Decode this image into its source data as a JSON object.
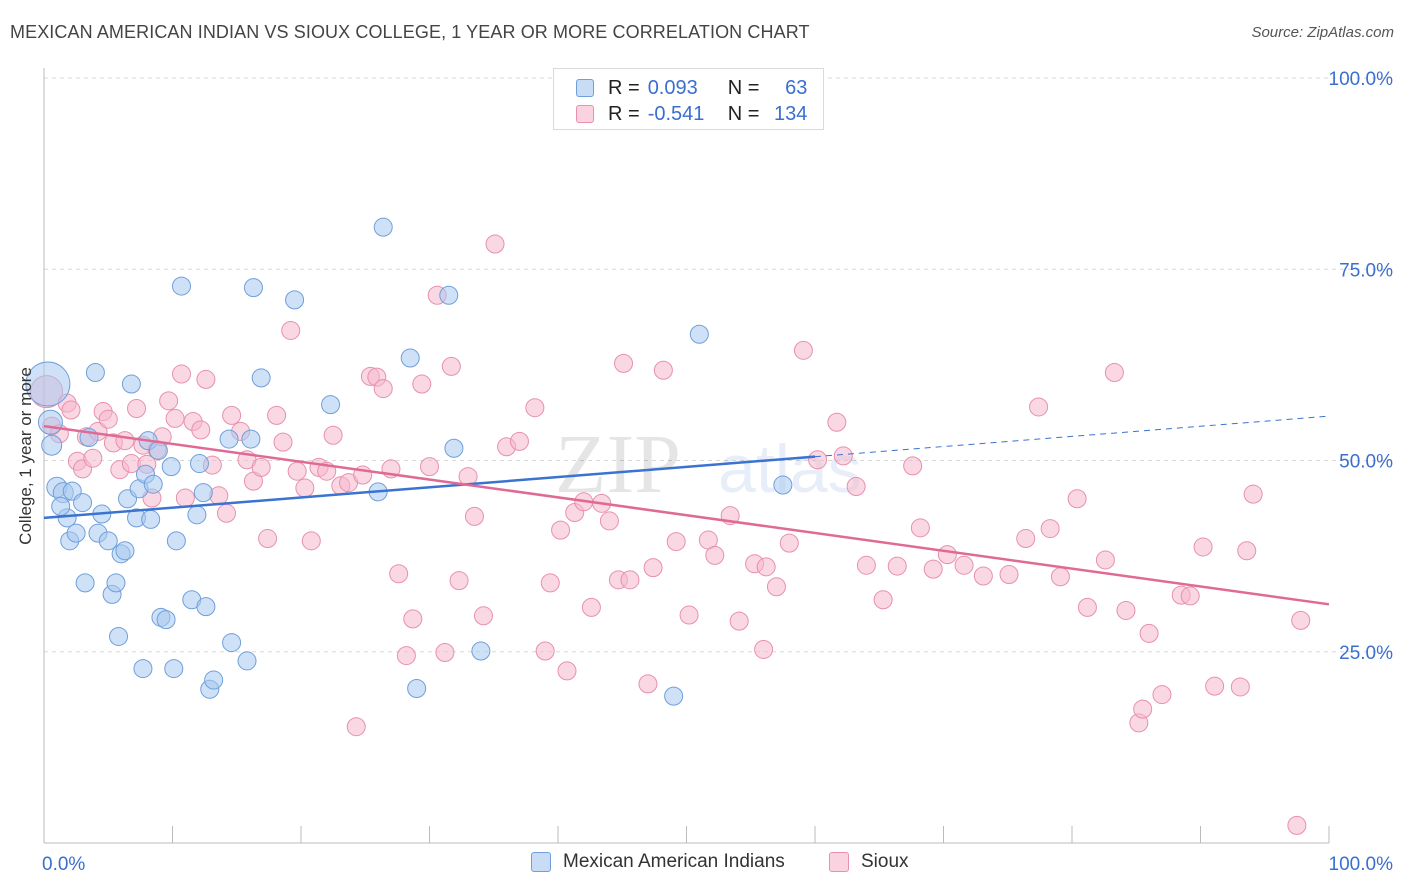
{
  "title": "MEXICAN AMERICAN INDIAN VS SIOUX COLLEGE, 1 YEAR OR MORE CORRELATION CHART",
  "source": "Source: ZipAtlas.com",
  "watermark": {
    "zip": "ZIP",
    "atlas": "atlas"
  },
  "legend": {
    "rows": [
      {
        "r_label": "R =",
        "r_value": "0.093",
        "n_label": "N =",
        "n_value": "63",
        "color": "#a8c8f0"
      },
      {
        "r_label": "R =",
        "r_value": "-0.541",
        "n_label": "N =",
        "n_value": "134",
        "color": "#f5b8cc"
      }
    ]
  },
  "colors": {
    "blue_fill": "#a8c8f0",
    "blue_stroke": "#6f9fdb",
    "blue_line": "#3a73d0",
    "pink_fill": "#f5b8cc",
    "pink_stroke": "#e890ad",
    "pink_line": "#e06a96",
    "tick_label": "#3a6fd0",
    "grid": "#d8d8d8"
  },
  "chart_data": {
    "type": "scatter",
    "title": "MEXICAN AMERICAN INDIAN VS SIOUX COLLEGE, 1 YEAR OR MORE CORRELATION CHART",
    "xlabel": "",
    "ylabel": "College, 1 year or more",
    "xlim": [
      0,
      100
    ],
    "ylim": [
      0,
      100
    ],
    "x_tick_labels": [
      "0.0%",
      "100.0%"
    ],
    "y_tick_labels": [
      "25.0%",
      "50.0%",
      "75.0%",
      "100.0%"
    ],
    "y_ticks": [
      25,
      50,
      75,
      100
    ],
    "grid": true,
    "legend_position": "bottom",
    "series": [
      {
        "name": "Mexican American Indians",
        "color": "#a8c8f0",
        "trend": {
          "x0": 0,
          "y0": 42.5,
          "x1": 60,
          "y1": 50.5,
          "dashed_to_x": 100,
          "dashed_to_y": 55.8
        },
        "points": [
          [
            0.3,
            60,
            22
          ],
          [
            0.5,
            55,
            12
          ],
          [
            0.6,
            52,
            10
          ],
          [
            1.0,
            46.5,
            10
          ],
          [
            1.5,
            45.8,
            10
          ],
          [
            1.8,
            42.5,
            9
          ],
          [
            2.0,
            39.5,
            9
          ],
          [
            2.2,
            46,
            9
          ],
          [
            2.5,
            40.5,
            9
          ],
          [
            3.0,
            44.5,
            9
          ],
          [
            3.2,
            34,
            9
          ],
          [
            3.5,
            53,
            9
          ],
          [
            4.0,
            61.5,
            9
          ],
          [
            4.2,
            40.5,
            9
          ],
          [
            4.5,
            43,
            9
          ],
          [
            5.0,
            39.5,
            9
          ],
          [
            5.3,
            32.5,
            9
          ],
          [
            5.6,
            34,
            9
          ],
          [
            5.8,
            27,
            9
          ],
          [
            6.0,
            37.8,
            9
          ],
          [
            6.3,
            38.2,
            9
          ],
          [
            6.5,
            45,
            9
          ],
          [
            6.8,
            60,
            9
          ],
          [
            7.2,
            42.5,
            9
          ],
          [
            7.4,
            46.3,
            9
          ],
          [
            7.7,
            22.8,
            9
          ],
          [
            7.9,
            48.2,
            9
          ],
          [
            8.1,
            52.6,
            9
          ],
          [
            8.3,
            42.3,
            9
          ],
          [
            8.9,
            51.3,
            9
          ],
          [
            9.1,
            29.5,
            9
          ],
          [
            9.5,
            29.2,
            9
          ],
          [
            9.9,
            49.2,
            9
          ],
          [
            10.1,
            22.8,
            9
          ],
          [
            10.3,
            39.5,
            9
          ],
          [
            10.7,
            72.8,
            9
          ],
          [
            11.5,
            31.8,
            9
          ],
          [
            11.9,
            42.9,
            9
          ],
          [
            12.1,
            49.6,
            9
          ],
          [
            12.4,
            45.8,
            9
          ],
          [
            12.6,
            30.9,
            9
          ],
          [
            12.9,
            20.1,
            9
          ],
          [
            13.2,
            21.3,
            9
          ],
          [
            14.4,
            52.8,
            9
          ],
          [
            14.6,
            26.2,
            9
          ],
          [
            15.8,
            23.8,
            9
          ],
          [
            16.1,
            52.8,
            9
          ],
          [
            16.3,
            72.6,
            9
          ],
          [
            16.9,
            60.8,
            9
          ],
          [
            19.5,
            71.0,
            9
          ],
          [
            22.3,
            57.3,
            9
          ],
          [
            26.0,
            45.9,
            9
          ],
          [
            26.4,
            80.5,
            9
          ],
          [
            28.5,
            63.4,
            9
          ],
          [
            29.0,
            20.2,
            9
          ],
          [
            31.5,
            71.6,
            9
          ],
          [
            31.9,
            51.6,
            9
          ],
          [
            34.0,
            25.1,
            9
          ],
          [
            49.0,
            19.2,
            9
          ],
          [
            51.0,
            66.5,
            9
          ],
          [
            57.5,
            46.8,
            9
          ],
          [
            1.3,
            44.0,
            9
          ],
          [
            8.5,
            46.9,
            9
          ]
        ]
      },
      {
        "name": "Sioux",
        "color": "#f5b8cc",
        "trend": {
          "x0": 0,
          "y0": 54.5,
          "x1": 100,
          "y1": 31.2
        },
        "points": [
          [
            0.2,
            59,
            16
          ],
          [
            0.6,
            54.5,
            9
          ],
          [
            1.2,
            53.5,
            9
          ],
          [
            1.8,
            57.5,
            9
          ],
          [
            2.1,
            56.6,
            9
          ],
          [
            2.6,
            49.9,
            9
          ],
          [
            3.0,
            48.9,
            9
          ],
          [
            3.3,
            53.1,
            9
          ],
          [
            3.8,
            50.3,
            9
          ],
          [
            4.2,
            53.8,
            9
          ],
          [
            4.6,
            56.4,
            9
          ],
          [
            5.0,
            55.4,
            9
          ],
          [
            5.4,
            52.3,
            9
          ],
          [
            5.9,
            48.8,
            9
          ],
          [
            6.3,
            52.6,
            9
          ],
          [
            6.8,
            49.6,
            9
          ],
          [
            7.2,
            56.8,
            9
          ],
          [
            7.7,
            52.0,
            9
          ],
          [
            8.0,
            49.5,
            9
          ],
          [
            8.4,
            45.1,
            9
          ],
          [
            8.8,
            51.4,
            9
          ],
          [
            9.2,
            53.1,
            9
          ],
          [
            9.7,
            57.8,
            9
          ],
          [
            10.2,
            55.5,
            9
          ],
          [
            10.7,
            61.3,
            9
          ],
          [
            11.0,
            45.1,
            9
          ],
          [
            11.6,
            55.1,
            9
          ],
          [
            12.2,
            54.0,
            9
          ],
          [
            12.6,
            60.6,
            9
          ],
          [
            13.1,
            49.4,
            9
          ],
          [
            13.6,
            45.4,
            9
          ],
          [
            14.2,
            43.1,
            9
          ],
          [
            14.6,
            55.9,
            9
          ],
          [
            15.3,
            53.8,
            9
          ],
          [
            15.8,
            50.1,
            9
          ],
          [
            16.3,
            47.3,
            9
          ],
          [
            16.9,
            49.1,
            9
          ],
          [
            17.4,
            39.8,
            9
          ],
          [
            18.1,
            55.9,
            9
          ],
          [
            18.6,
            52.4,
            9
          ],
          [
            19.2,
            67.0,
            9
          ],
          [
            19.7,
            48.6,
            9
          ],
          [
            20.3,
            46.4,
            9
          ],
          [
            20.8,
            39.5,
            9
          ],
          [
            21.4,
            49.1,
            9
          ],
          [
            22.0,
            48.6,
            9
          ],
          [
            22.5,
            53.3,
            9
          ],
          [
            23.1,
            46.7,
            9
          ],
          [
            23.7,
            47.1,
            9
          ],
          [
            24.3,
            15.2,
            9
          ],
          [
            24.8,
            48.1,
            9
          ],
          [
            25.4,
            61.0,
            9
          ],
          [
            25.9,
            60.9,
            9
          ],
          [
            26.4,
            59.4,
            9
          ],
          [
            27.0,
            48.9,
            9
          ],
          [
            27.6,
            35.2,
            9
          ],
          [
            28.2,
            24.5,
            9
          ],
          [
            28.7,
            29.3,
            9
          ],
          [
            29.4,
            60.0,
            9
          ],
          [
            30.0,
            49.2,
            9
          ],
          [
            30.6,
            71.6,
            9
          ],
          [
            31.2,
            24.9,
            9
          ],
          [
            31.7,
            62.3,
            9
          ],
          [
            32.3,
            34.3,
            9
          ],
          [
            33.0,
            47.9,
            9
          ],
          [
            33.5,
            42.7,
            9
          ],
          [
            34.2,
            29.7,
            9
          ],
          [
            35.1,
            78.3,
            9
          ],
          [
            36.0,
            51.8,
            9
          ],
          [
            37.0,
            52.5,
            9
          ],
          [
            38.2,
            56.9,
            9
          ],
          [
            39.0,
            25.1,
            9
          ],
          [
            39.4,
            34.0,
            9
          ],
          [
            40.2,
            40.9,
            9
          ],
          [
            40.7,
            22.5,
            9
          ],
          [
            41.3,
            43.2,
            9
          ],
          [
            42.0,
            44.6,
            9
          ],
          [
            42.6,
            30.8,
            9
          ],
          [
            43.4,
            44.4,
            9
          ],
          [
            44.0,
            42.1,
            9
          ],
          [
            44.7,
            34.4,
            9
          ],
          [
            45.1,
            62.7,
            9
          ],
          [
            47.0,
            20.8,
            9
          ],
          [
            47.4,
            36.0,
            9
          ],
          [
            48.2,
            61.8,
            9
          ],
          [
            49.2,
            39.4,
            9
          ],
          [
            50.2,
            29.8,
            9
          ],
          [
            51.7,
            39.6,
            9
          ],
          [
            52.2,
            37.6,
            9
          ],
          [
            53.4,
            42.8,
            9
          ],
          [
            54.1,
            29.0,
            9
          ],
          [
            55.3,
            36.5,
            9
          ],
          [
            56.0,
            25.3,
            9
          ],
          [
            57.0,
            33.5,
            9
          ],
          [
            58.0,
            39.2,
            9
          ],
          [
            59.1,
            64.4,
            9
          ],
          [
            60.2,
            50.1,
            9
          ],
          [
            61.7,
            55.0,
            9
          ],
          [
            62.2,
            50.6,
            9
          ],
          [
            63.2,
            46.6,
            9
          ],
          [
            64.0,
            36.3,
            9
          ],
          [
            65.3,
            31.8,
            9
          ],
          [
            66.4,
            36.2,
            9
          ],
          [
            67.6,
            49.3,
            9
          ],
          [
            68.2,
            41.2,
            9
          ],
          [
            69.2,
            35.8,
            9
          ],
          [
            70.3,
            37.7,
            9
          ],
          [
            71.6,
            36.3,
            9
          ],
          [
            73.1,
            34.9,
            9
          ],
          [
            75.1,
            35.1,
            9
          ],
          [
            76.4,
            39.8,
            9
          ],
          [
            77.4,
            57.0,
            9
          ],
          [
            78.3,
            41.1,
            9
          ],
          [
            79.1,
            34.8,
            9
          ],
          [
            80.4,
            45.0,
            9
          ],
          [
            81.2,
            30.8,
            9
          ],
          [
            82.6,
            37.0,
            9
          ],
          [
            83.3,
            61.5,
            9
          ],
          [
            84.2,
            30.4,
            9
          ],
          [
            85.2,
            15.7,
            9
          ],
          [
            85.5,
            17.5,
            9
          ],
          [
            86.0,
            27.4,
            9
          ],
          [
            87.0,
            19.4,
            9
          ],
          [
            88.5,
            32.4,
            9
          ],
          [
            89.2,
            32.3,
            9
          ],
          [
            90.2,
            38.7,
            9
          ],
          [
            91.1,
            20.5,
            9
          ],
          [
            93.1,
            20.4,
            9
          ],
          [
            93.6,
            38.2,
            9
          ],
          [
            94.1,
            45.6,
            9
          ],
          [
            97.5,
            2.3,
            9
          ],
          [
            97.8,
            29.1,
            9
          ],
          [
            56.2,
            36.1,
            9
          ],
          [
            45.6,
            34.4,
            9
          ]
        ]
      }
    ]
  }
}
